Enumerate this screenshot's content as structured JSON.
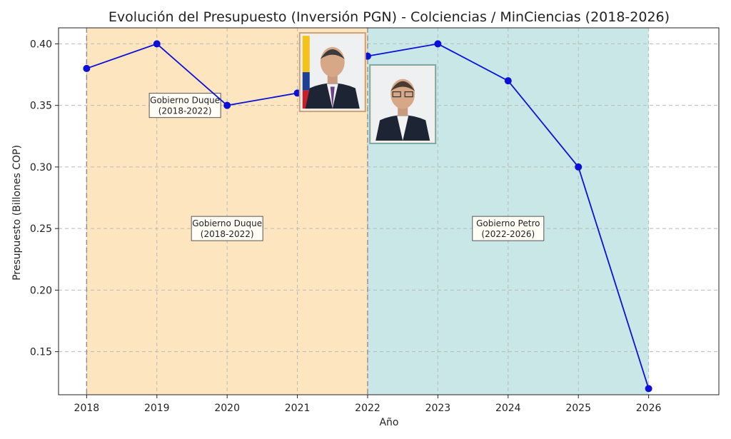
{
  "chart_data": {
    "type": "line",
    "title": "Evolución del Presupuesto (Inversión PGN) - Colciencias / MinCiencias (2018-2026)",
    "xlabel": "Año",
    "ylabel": "Presupuesto (Billones COP)",
    "x": [
      2018,
      2019,
      2020,
      2021,
      2022,
      2023,
      2024,
      2025,
      2026
    ],
    "series": [
      {
        "values": [
          0.38,
          0.4,
          0.35,
          0.36,
          0.39,
          0.4,
          0.37,
          0.3,
          0.12
        ],
        "color": "#0a10d8"
      }
    ],
    "xlim": [
      2017.6,
      2027.0
    ],
    "ylim": [
      0.115,
      0.413
    ],
    "xticks": [
      "2018",
      "2019",
      "2020",
      "2021",
      "2022",
      "2023",
      "2024",
      "2025",
      "2026"
    ],
    "yticks": [
      "0.15",
      "0.20",
      "0.25",
      "0.30",
      "0.35",
      "0.40"
    ],
    "grid": true,
    "regions": [
      {
        "from": 2018,
        "to": 2022,
        "color": "#fde6bf"
      },
      {
        "from": 2022,
        "to": 2026,
        "color": "#c9e7e7"
      }
    ],
    "annotations": [
      {
        "line1": "Gobierno Duque",
        "line2": "(2018-2022)",
        "x": 2019.4,
        "y": 0.35
      },
      {
        "line1": "Gobierno Duque",
        "line2": "(2018-2022)",
        "x": 2020.0,
        "y": 0.25
      },
      {
        "line1": "Gobierno Petro",
        "line2": "(2022-2026)",
        "x": 2024.0,
        "y": 0.25
      }
    ],
    "portraits": [
      {
        "name": "duque-portrait",
        "x": 2021.5,
        "y": 0.377
      },
      {
        "name": "petro-portrait",
        "x": 2022.5,
        "y": 0.351
      }
    ]
  }
}
